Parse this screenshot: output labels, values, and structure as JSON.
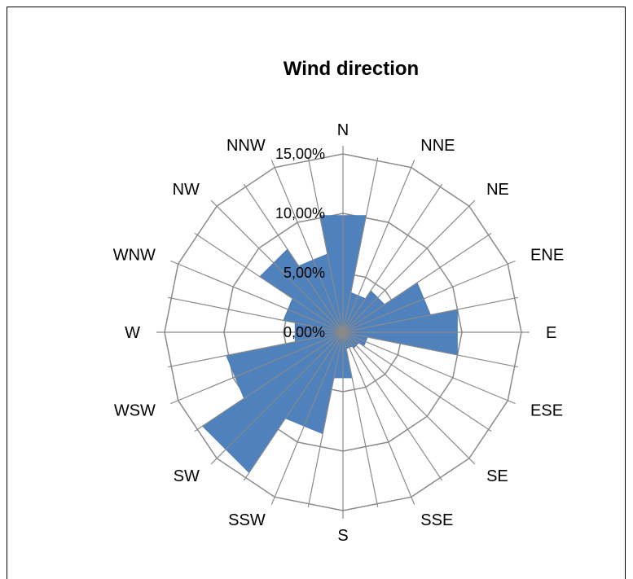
{
  "chart_data": {
    "type": "radar",
    "title": "Wind direction",
    "categories": [
      "N",
      "NNE",
      "NE",
      "ENE",
      "E",
      "ESE",
      "SE",
      "SSE",
      "S",
      "SSW",
      "SW",
      "WSW",
      "W",
      "WNW",
      "NW",
      "NNW"
    ],
    "values": [
      10.0,
      3.4,
      4.2,
      7.5,
      9.8,
      2.1,
      1.6,
      1.4,
      3.9,
      8.7,
      14.2,
      10.0,
      4.1,
      5.1,
      8.4,
      6.7
    ],
    "radial_ticks": [
      "0,00%",
      "5,00%",
      "10,00%",
      "15,00%"
    ],
    "radial_tick_values": [
      0,
      5,
      10,
      15
    ],
    "rmax": 15,
    "grid": true,
    "legend": "none",
    "series_color": "#4f81bd",
    "grid_color": "#8a8a8a"
  }
}
